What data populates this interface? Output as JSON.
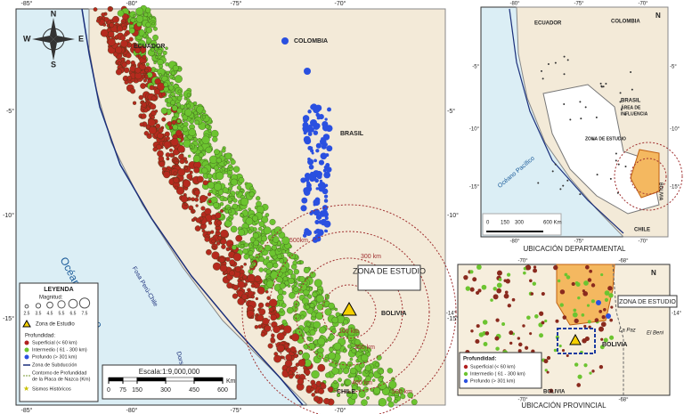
{
  "main_map": {
    "top_ticks": [
      "-85°",
      "-80°",
      "-75°",
      "-70°"
    ],
    "bottom_ticks": [
      "-85°",
      "-80°",
      "-75°",
      "-70°"
    ],
    "left_ticks": [
      "-5°",
      "-10°",
      "-15°"
    ],
    "right_ticks": [
      "-5°",
      "-10°",
      "-15°"
    ],
    "countries": {
      "ecuador": "ECUADOR",
      "colombia": "COLOMBIA",
      "brasil": "BRASIL",
      "bolivia": "BOLIVIA",
      "chile": "CHILE"
    },
    "ocean": "Océano Pacífico",
    "trench": "Fosa Perú-Chile",
    "ridge": "Dorsal de Nazca",
    "study_zone": "ZONA DE ESTUDIO",
    "contours": [
      "500km",
      "300 km",
      "100 km",
      "250 km",
      "400 km",
      "500 km"
    ],
    "compass": {
      "n": "N",
      "s": "S",
      "e": "E",
      "w": "W"
    },
    "legend": {
      "title": "LEYENDA",
      "magnitude_title": "Magnitud:",
      "magnitudes": [
        2.5,
        3.5,
        4.5,
        5.5,
        6.5,
        7.5
      ],
      "study_zone": "Zona de Estudio",
      "depth_title": "Profundidad:",
      "shallow": "Superficial (< 60 km)",
      "intermediate": "Intermedio ( 61 - 300 km)",
      "deep": "Profundo (> 301 km)",
      "subduction": "Zona de Subducción",
      "contour": "Contorno de Profundidad",
      "contour2": "de la Placa de Nazca (Km)",
      "historic": "Sismos Históricos"
    },
    "scale": {
      "title": "Escala:1:9,000,000",
      "ticks": [
        0,
        75,
        150,
        300,
        450,
        600
      ],
      "unit": "Km"
    }
  },
  "dept_map": {
    "title": "UBICACIÓN DEPARTAMENTAL",
    "top_ticks": [
      "-80°",
      "-75°",
      "-70°"
    ],
    "bottom_ticks": [
      "-80°",
      "-75°",
      "-70°"
    ],
    "left_ticks": [
      "-5°",
      "-10°",
      "-15°"
    ],
    "right_ticks": [
      "-5°",
      "-10°",
      "-15°"
    ],
    "labels": {
      "ecuador": "ECUADOR",
      "colombia": "COLOMBIA",
      "brasil": "BRASIL",
      "influence": "ÁREA DE",
      "influence2": "INFLUENCIA",
      "study": "ZONA DE ESTUDIO",
      "ocean": "Océano Pacífico",
      "bolivia": "BOLIVIA",
      "chile": "CHILE",
      "north": "N"
    },
    "scale_ticks": [
      "0",
      "150",
      "300",
      "600 Km"
    ]
  },
  "prov_map": {
    "title": "UBICACIÓN PROVINCIAL",
    "top_ticks": [
      "-70°",
      "-68°"
    ],
    "bottom_ticks": [
      "-70°",
      "-68°"
    ],
    "left_ticks": [
      "-14°"
    ],
    "right_ticks": [
      "-14°"
    ],
    "labels": {
      "study": "ZONA DE ESTUDIO",
      "bolivia": "BOLIVIA",
      "lapaz": "La Paz",
      "elbeni": "El Beni",
      "north": "N"
    },
    "legend": {
      "title": "Profundidad:",
      "shallow": "Superficial (< 60 km)",
      "intermediate": "Intermedio ( 61 - 300 km)",
      "deep": "Profundo (> 301 km)"
    }
  }
}
